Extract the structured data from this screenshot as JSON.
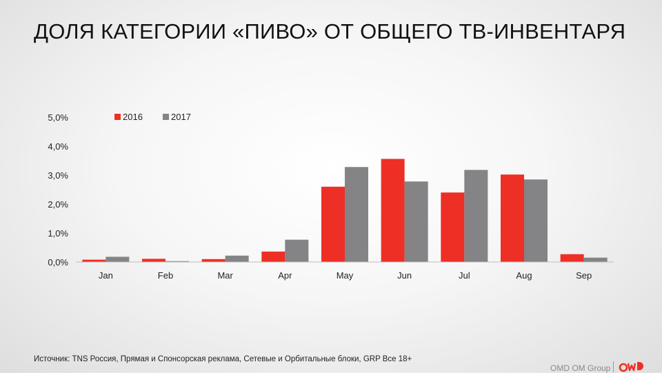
{
  "title": "ДОЛЯ КАТЕГОРИИ «ПИВО» ОТ ОБЩЕГО ТВ-ИНВЕНТАРЯ",
  "footer": {
    "source": "Источник: TNS Россия, Прямая и Спонсорская реклама, Сетевые и Орбитальные блоки, GRP Все 18+",
    "brand": "OMD OM Group",
    "logo_icon": "omd-logo-icon"
  },
  "chart_data": {
    "type": "bar",
    "categories": [
      "Jan",
      "Feb",
      "Mar",
      "Apr",
      "May",
      "Jun",
      "Jul",
      "Aug",
      "Sep"
    ],
    "series": [
      {
        "name": "2016",
        "color": "#ee2f25",
        "values": [
          0.0008,
          0.0011,
          0.001,
          0.0036,
          0.026,
          0.0356,
          0.024,
          0.0302,
          0.0027
        ]
      },
      {
        "name": "2017",
        "color": "#848386",
        "values": [
          0.0018,
          0.0003,
          0.0022,
          0.0077,
          0.0328,
          0.0278,
          0.0318,
          0.0285,
          0.0015
        ]
      }
    ],
    "yticks": [
      "0,0%",
      "1,0%",
      "2,0%",
      "3,0%",
      "4,0%",
      "5,0%"
    ],
    "ylim": [
      0,
      0.05
    ],
    "legend_position": "top-left",
    "grid": false
  }
}
